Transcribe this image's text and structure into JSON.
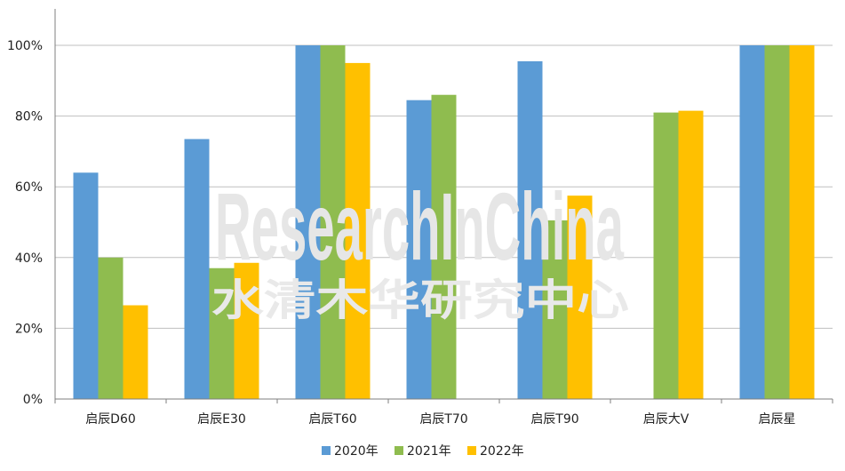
{
  "chart_data": {
    "type": "bar",
    "categories": [
      "启辰D60",
      "启辰E30",
      "启辰T60",
      "启辰T70",
      "启辰T90",
      "启辰大V",
      "启辰星"
    ],
    "series": [
      {
        "name": "2020年",
        "color": "#5b9bd5",
        "values": [
          64,
          73.5,
          100,
          84.5,
          95.5,
          null,
          100
        ]
      },
      {
        "name": "2021年",
        "color": "#8fbc4f",
        "values": [
          40,
          37,
          100,
          86,
          50.5,
          81,
          100
        ]
      },
      {
        "name": "2022年",
        "color": "#ffc000",
        "values": [
          26.5,
          38.5,
          95,
          null,
          57.5,
          81.5,
          100
        ]
      }
    ],
    "ylim": [
      0,
      100
    ],
    "yticks": [
      0,
      20,
      40,
      60,
      80,
      100
    ],
    "ytick_labels": [
      "0%",
      "20%",
      "40%",
      "60%",
      "80%",
      "100%"
    ],
    "grid": true,
    "legend_position": "bottom"
  },
  "watermark": {
    "line1": "ResearchInChina",
    "line2": "水清木华研究中心"
  }
}
